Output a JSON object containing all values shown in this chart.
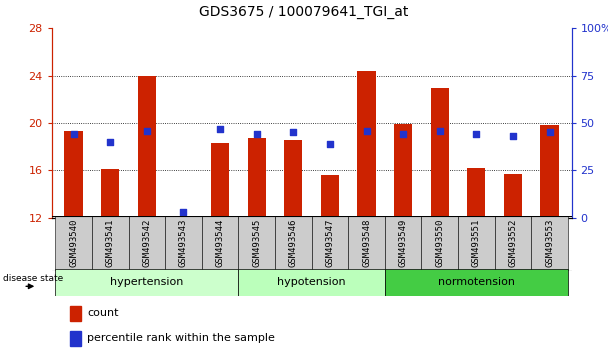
{
  "title": "GDS3675 / 100079641_TGI_at",
  "samples": [
    "GSM493540",
    "GSM493541",
    "GSM493542",
    "GSM493543",
    "GSM493544",
    "GSM493545",
    "GSM493546",
    "GSM493547",
    "GSM493548",
    "GSM493549",
    "GSM493550",
    "GSM493551",
    "GSM493552",
    "GSM493553"
  ],
  "count_values": [
    19.3,
    16.1,
    24.0,
    12.1,
    18.3,
    18.7,
    18.6,
    15.6,
    24.4,
    19.9,
    23.0,
    16.2,
    15.7,
    19.8
  ],
  "percentile_values": [
    44,
    40,
    46,
    3,
    47,
    44,
    45,
    39,
    46,
    44,
    46,
    44,
    43,
    45
  ],
  "groups": [
    {
      "label": "hypertension",
      "start": 0,
      "end": 5,
      "color": "#ccffcc"
    },
    {
      "label": "hypotension",
      "start": 5,
      "end": 9,
      "color": "#bbffbb"
    },
    {
      "label": "normotension",
      "start": 9,
      "end": 14,
      "color": "#44cc44"
    }
  ],
  "ylim_left": [
    12,
    28
  ],
  "ylim_right": [
    0,
    100
  ],
  "yticks_left": [
    12,
    16,
    20,
    24,
    28
  ],
  "yticks_right": [
    0,
    25,
    50,
    75,
    100
  ],
  "bar_color": "#cc2200",
  "dot_color": "#2233cc",
  "bar_baseline": 12,
  "label_color_left": "#cc2200",
  "label_color_right": "#2233cc",
  "tick_bg_color": "#cccccc",
  "border_color": "#000000"
}
